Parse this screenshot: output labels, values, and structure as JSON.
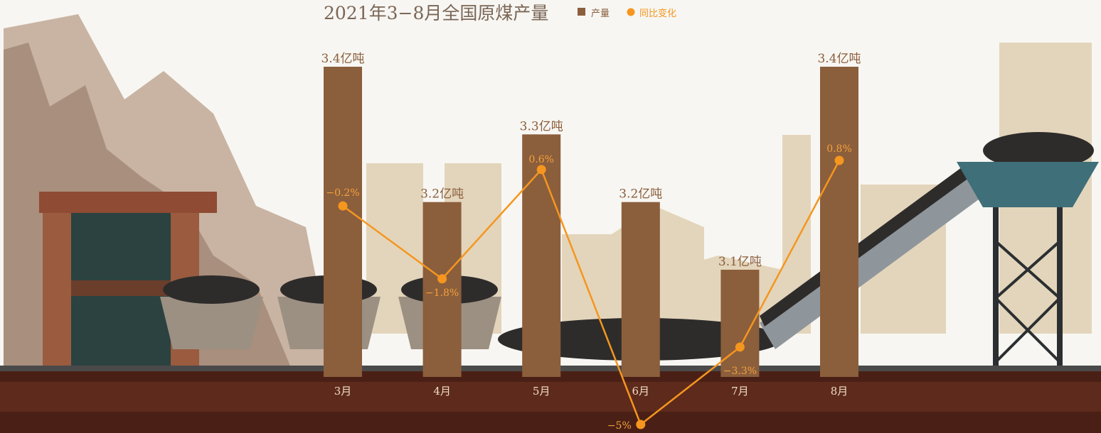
{
  "chart_data": {
    "type": "bar",
    "title": "2021年3−8月全国原煤产量",
    "categories": [
      "3月",
      "4月",
      "5月",
      "6月",
      "7月",
      "8月"
    ],
    "series": [
      {
        "name": "产量",
        "kind": "bar",
        "values": [
          3.4,
          3.2,
          3.3,
          3.2,
          3.1,
          3.4
        ],
        "labels": [
          "3.4亿吨",
          "3.2亿吨",
          "3.3亿吨",
          "3.2亿吨",
          "3.1亿吨",
          "3.4亿吨"
        ],
        "color": "#8b5e3c"
      },
      {
        "name": "同比变化",
        "kind": "line",
        "values": [
          -0.2,
          -1.8,
          0.6,
          -5,
          -3.3,
          0.8
        ],
        "labels": [
          "−0.2%",
          "−1.8%",
          "0.6%",
          "−5%",
          "−3.3%",
          "0.8%"
        ],
        "color": "#f5961f"
      }
    ],
    "legend": "top",
    "grid": false
  },
  "colors": {
    "bar": "#8b5e3c",
    "line": "#f5961f",
    "title": "#7a6656"
  }
}
